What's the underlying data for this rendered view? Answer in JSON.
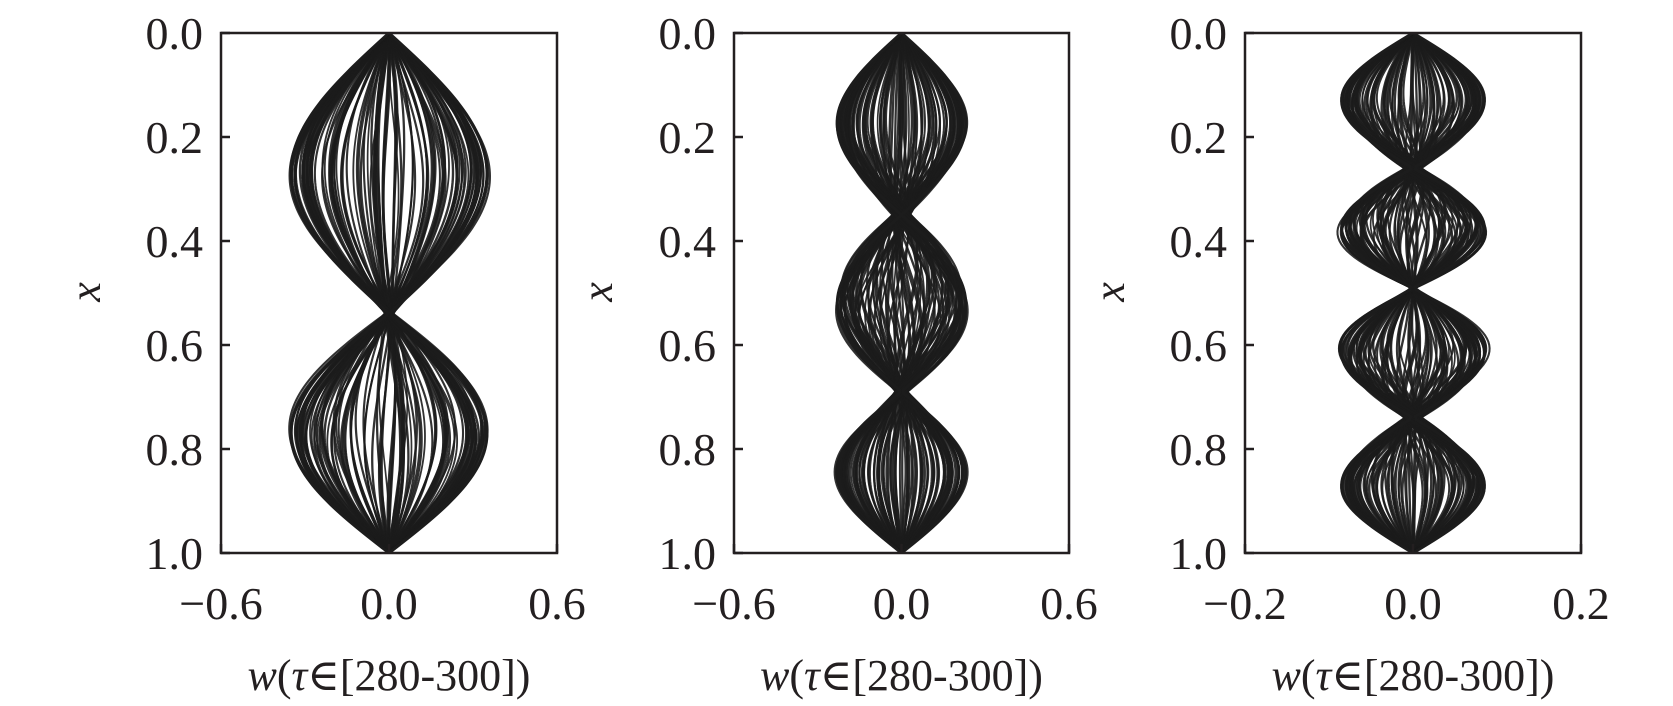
{
  "chart_data": [
    {
      "type": "line",
      "panel": "left",
      "xlabel": "w(τ∈[280-300])",
      "ylabel": "x",
      "xlim": [
        -0.6,
        0.6
      ],
      "ylim": [
        0.0,
        1.0
      ],
      "y_inverted": true,
      "xticks": [
        -0.6,
        0.0,
        0.6
      ],
      "xtick_labels": [
        "−0.6",
        "0.0",
        "0.6"
      ],
      "yticks": [
        0.0,
        0.2,
        0.4,
        0.6,
        0.8,
        1.0
      ],
      "ytick_labels": [
        "0.0",
        "0.2",
        "0.4",
        "0.6",
        "0.8",
        "1.0"
      ],
      "grid": false,
      "mode_lobes": 2,
      "max_amplitude": 0.35,
      "nodes_x": [
        0.0,
        0.54,
        1.0
      ]
    },
    {
      "type": "line",
      "panel": "middle",
      "xlabel": "w(τ∈[280-300])",
      "ylabel": "x",
      "xlim": [
        -0.6,
        0.6
      ],
      "ylim": [
        0.0,
        1.0
      ],
      "y_inverted": true,
      "xticks": [
        -0.6,
        0.0,
        0.6
      ],
      "xtick_labels": [
        "−0.6",
        "0.0",
        "0.6"
      ],
      "yticks": [
        0.0,
        0.2,
        0.4,
        0.6,
        0.8,
        1.0
      ],
      "ytick_labels": [
        "0.0",
        "0.2",
        "0.4",
        "0.6",
        "0.8",
        "1.0"
      ],
      "grid": false,
      "mode_lobes": 3,
      "max_amplitude": 0.23,
      "nodes_x": [
        0.0,
        0.35,
        0.69,
        1.0
      ]
    },
    {
      "type": "line",
      "panel": "right",
      "xlabel": "w(τ∈[280-300])",
      "ylabel": "x",
      "xlim": [
        -0.2,
        0.2
      ],
      "ylim": [
        0.0,
        1.0
      ],
      "y_inverted": true,
      "xticks": [
        -0.2,
        0.0,
        0.2
      ],
      "xtick_labels": [
        "−0.2",
        "0.0",
        "0.2"
      ],
      "yticks": [
        0.0,
        0.2,
        0.4,
        0.6,
        0.8,
        1.0
      ],
      "ytick_labels": [
        "0.0",
        "0.2",
        "0.4",
        "0.6",
        "0.8",
        "1.0"
      ],
      "grid": false,
      "mode_lobes": 4,
      "max_amplitude": 0.085,
      "nodes_x": [
        0.0,
        0.26,
        0.49,
        0.74,
        1.0
      ]
    }
  ],
  "colors": {
    "curves": "#1c1c1c",
    "axes": "#231f20",
    "background": "#ffffff"
  }
}
